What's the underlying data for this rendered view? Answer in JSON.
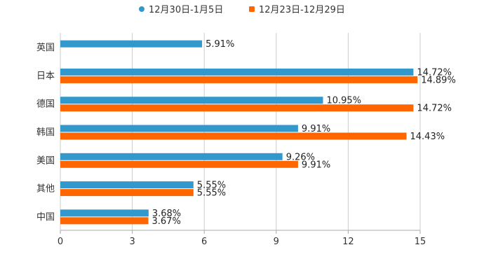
{
  "chart_data": {
    "type": "bar",
    "orientation": "horizontal",
    "categories": [
      "英国",
      "日本",
      "德国",
      "韩国",
      "美国",
      "其他",
      "中国"
    ],
    "series": [
      {
        "name": "12月30日-1月5日",
        "color": "#3399cc",
        "values": [
          5.91,
          14.72,
          10.95,
          9.91,
          9.26,
          5.55,
          3.68
        ],
        "labels": [
          "5.91%",
          "14.72%",
          "10.95%",
          "9.91%",
          "9.26%",
          "5.55%",
          "3.68%"
        ]
      },
      {
        "name": "12月23日-12月29日",
        "color": "#ff6600",
        "values": [
          null,
          14.89,
          14.72,
          14.43,
          9.91,
          5.55,
          3.67
        ],
        "labels": [
          null,
          "14.89%",
          "14.72%",
          "14.43%",
          "9.91%",
          "5.55%",
          "3.67%"
        ]
      }
    ],
    "xlim": [
      0,
      15
    ],
    "xticks": [
      0,
      3,
      6,
      9,
      12,
      15
    ],
    "xtick_labels": [
      "0",
      "3",
      "6",
      "9",
      "12",
      "15"
    ],
    "grid": true,
    "legend_position": "top-center",
    "title": "",
    "xlabel": "",
    "ylabel": ""
  }
}
